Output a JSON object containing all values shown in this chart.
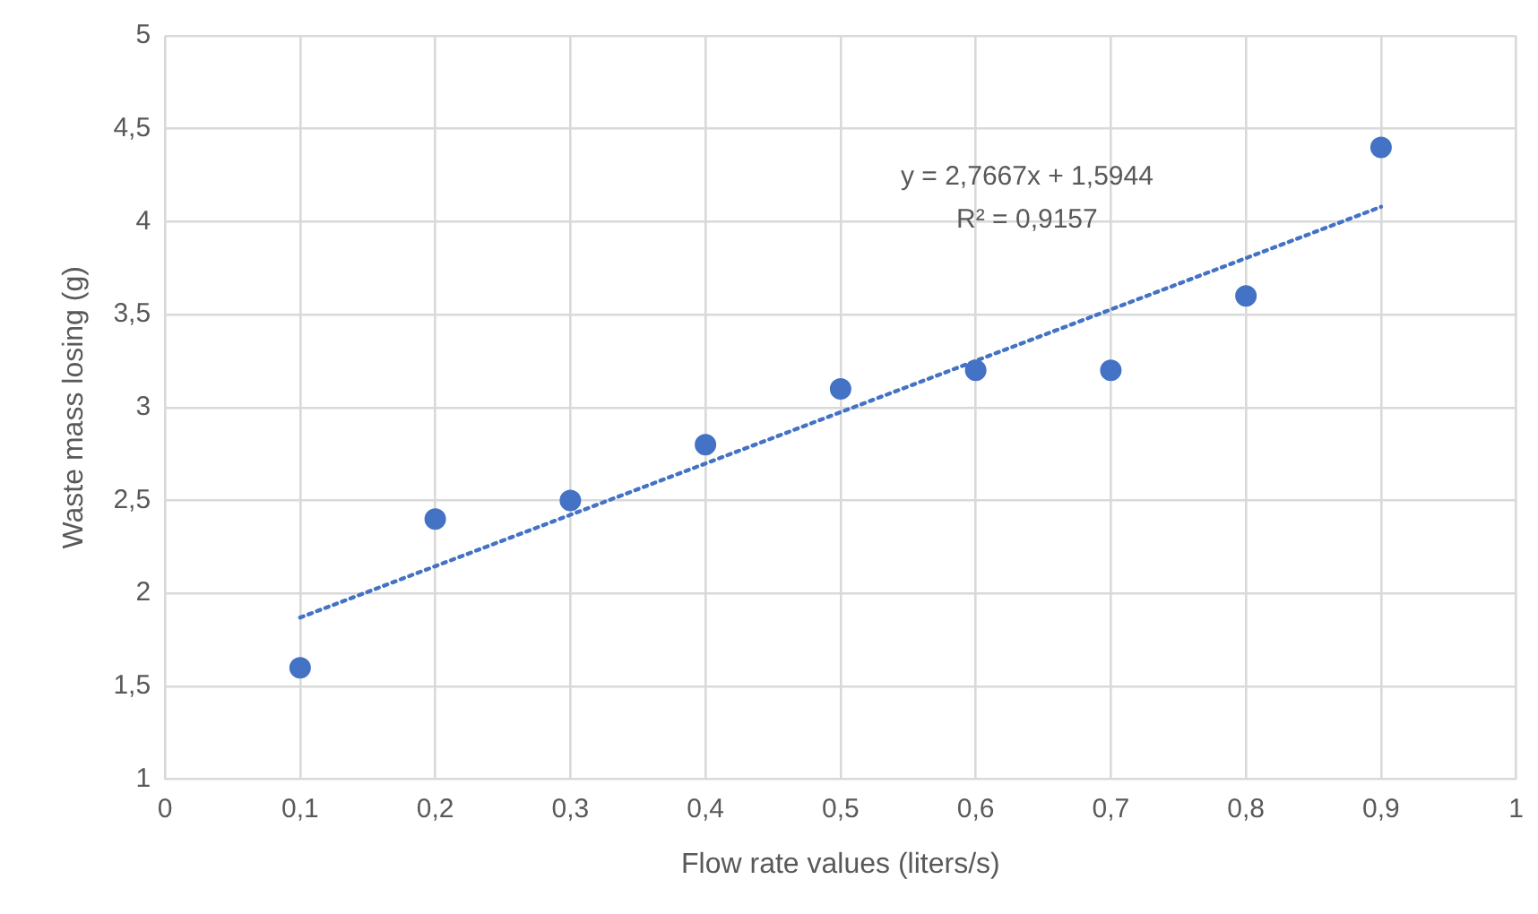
{
  "chart_data": {
    "type": "scatter",
    "xlabel": "Flow rate values (liters/s)",
    "ylabel": "Waste mass losing (g)",
    "x": [
      0.1,
      0.2,
      0.3,
      0.4,
      0.5,
      0.6,
      0.7,
      0.8,
      0.9
    ],
    "series": [
      {
        "color": "#4472c4",
        "marker": "circle",
        "values": [
          1.6,
          2.4,
          2.5,
          2.8,
          3.1,
          3.2,
          3.2,
          3.6,
          4.4
        ]
      },
      {
        "type": "line",
        "color": "#4472c4",
        "marker": "none",
        "line_style": "dotted",
        "x": [
          0.1,
          0.9
        ],
        "values": [
          1.87,
          4.08
        ]
      }
    ],
    "xlim": [
      0,
      1
    ],
    "xticks": [
      0,
      {
        "value": 0.1,
        "label": "0,1"
      },
      {
        "value": 0.2,
        "label": "0,2"
      },
      {
        "value": 0.3,
        "label": "0,3"
      },
      {
        "value": 0.4,
        "label": "0,4"
      },
      {
        "value": 0.5,
        "label": "0,5"
      },
      {
        "value": 0.6,
        "label": "0,6"
      },
      {
        "value": 0.7,
        "label": "0,7"
      },
      {
        "value": 0.8,
        "label": "0,8"
      },
      {
        "value": 0.9,
        "label": "0,9"
      },
      1
    ],
    "ylim": [
      1,
      5
    ],
    "yticks": [
      1,
      {
        "value": 1.5,
        "label": "1,5"
      },
      2,
      {
        "value": 2.5,
        "label": "2,5"
      },
      3,
      {
        "value": 3.5,
        "label": "3,5"
      },
      4,
      {
        "value": 4.5,
        "label": "4,5"
      },
      5
    ],
    "grid": true,
    "legend": false,
    "annotations": [
      "y = 2,7667x + 1,5944",
      "R² = 0,9157"
    ]
  }
}
